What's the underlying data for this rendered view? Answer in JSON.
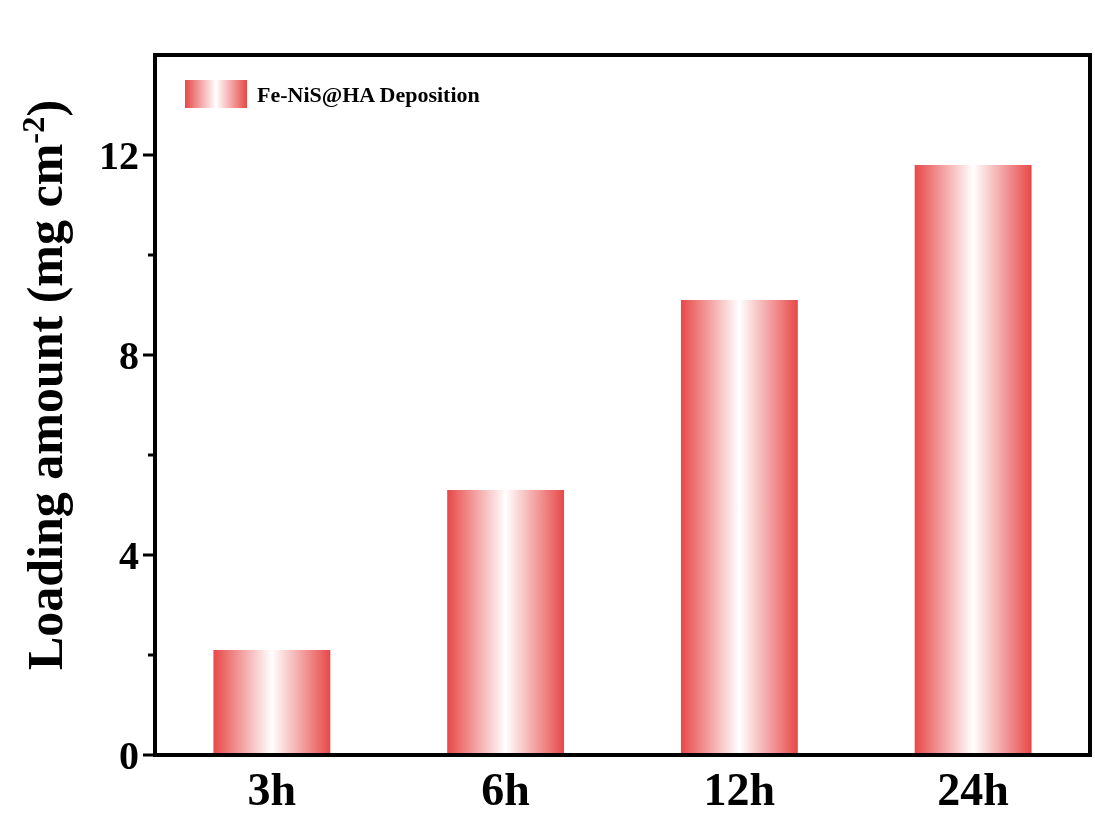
{
  "chart_data": {
    "type": "bar",
    "ylabel": "Loading amount (mg cm$^{-2}$)",
    "categories": [
      "3h",
      "6h",
      "12h",
      "24h"
    ],
    "series": [
      {
        "name": "Fe-NiS@HA Deposition",
        "color": "#e84848",
        "values": [
          2.1,
          5.3,
          9.1,
          11.8
        ]
      }
    ],
    "ylim": [
      0,
      14
    ],
    "yticks": [
      0,
      {
        "value": 2,
        "label": null
      },
      4,
      {
        "value": 6,
        "label": null
      },
      8,
      {
        "value": 10,
        "label": null
      },
      12
    ],
    "grid": false,
    "legend": "top left"
  }
}
